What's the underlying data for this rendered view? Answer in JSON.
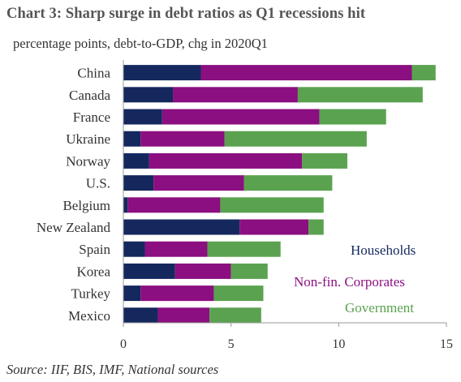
{
  "title": "Chart 3:  Sharp surge in debt ratios as Q1 recessions hit",
  "subtitle": "percentage points, debt-to-GDP, chg in 2020Q1",
  "source": "Source: IIF, BIS, IMF, National sources",
  "colors": {
    "households": "#14285e",
    "corporates": "#8b0f80",
    "government": "#5aa24f"
  },
  "chart_data": {
    "type": "bar",
    "orientation": "horizontal",
    "stacked": true,
    "categories": [
      "China",
      "Canada",
      "France",
      "Ukraine",
      "Norway",
      "U.S.",
      "Belgium",
      "New Zealand",
      "Spain",
      "Korea",
      "Turkey",
      "Mexico"
    ],
    "series": [
      {
        "name": "Households",
        "values": [
          3.6,
          2.3,
          1.8,
          0.8,
          1.2,
          1.4,
          0.2,
          5.4,
          1.0,
          2.4,
          0.8,
          1.6
        ]
      },
      {
        "name": "Non-fin. Corporates",
        "values": [
          9.8,
          5.8,
          7.3,
          3.9,
          7.1,
          4.2,
          4.3,
          3.2,
          2.9,
          2.6,
          3.4,
          2.4
        ]
      },
      {
        "name": "Government",
        "values": [
          1.1,
          5.8,
          3.1,
          6.6,
          2.1,
          4.1,
          4.8,
          0.7,
          3.4,
          1.7,
          2.3,
          2.4
        ]
      }
    ],
    "xticks": [
      0,
      5,
      10,
      15
    ],
    "xlim": [
      0,
      15
    ],
    "legend_position": "bottom-right",
    "grid": false
  }
}
